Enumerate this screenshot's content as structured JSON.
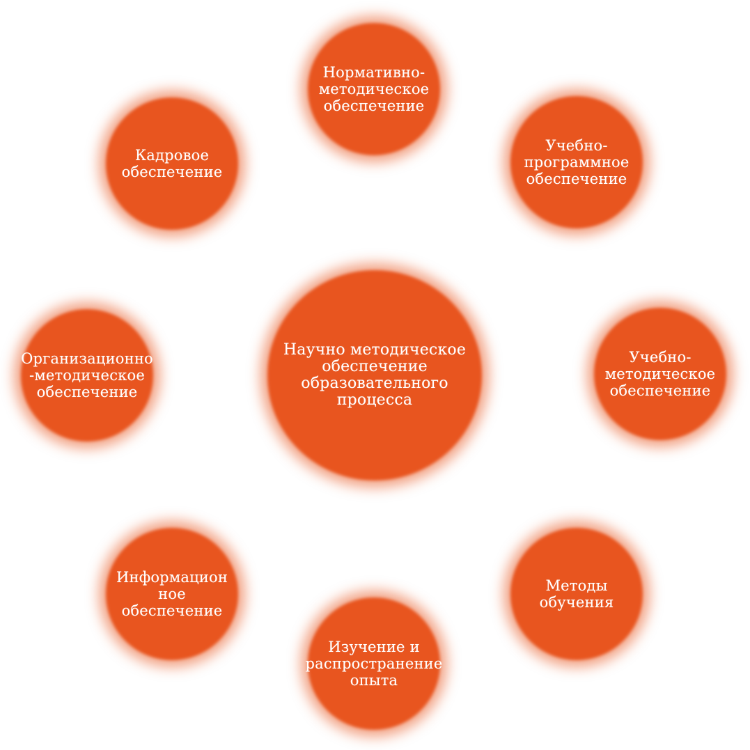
{
  "diagram": {
    "colors": {
      "circle_fill": "#e8551f",
      "text": "#ffffff",
      "background": "#ffffff"
    },
    "center": {
      "label": "Научно методическое\nобеспечение\nобразовательного\nпроцесса"
    },
    "nodes": [
      {
        "label": "Нормативно-\nметодическое\nобеспечение"
      },
      {
        "label": "Учебно-\nпрограммное\nобеспечение"
      },
      {
        "label": "Учебно-\nметодическое\nобеспечение"
      },
      {
        "label": "Методы\nобучения"
      },
      {
        "label": "Изучение и\nраспространение\nопыта"
      },
      {
        "label": "Информацион\nное обеспечение"
      },
      {
        "label": "Организационно\n-методическое\nобеспечение"
      },
      {
        "label": "Кадровое\nобеспечение"
      }
    ]
  }
}
